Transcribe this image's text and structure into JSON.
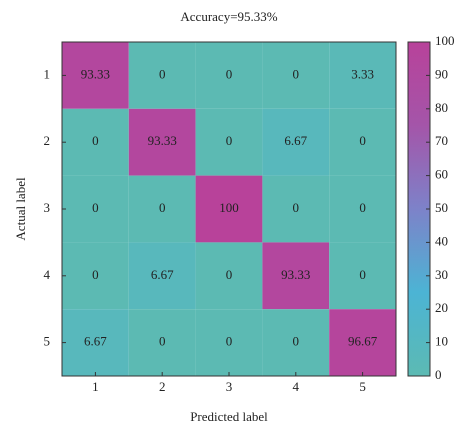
{
  "chart_data": {
    "type": "heatmap",
    "title": "Accuracy=95.33%",
    "x_label": "Predicted label",
    "y_label": "Actual label",
    "x_categories": [
      "1",
      "2",
      "3",
      "4",
      "5"
    ],
    "y_categories": [
      "1",
      "2",
      "3",
      "4",
      "5"
    ],
    "z": [
      [
        93.33,
        0,
        0,
        0,
        3.33
      ],
      [
        0,
        93.33,
        0,
        6.67,
        0
      ],
      [
        0,
        0,
        100,
        0,
        0
      ],
      [
        0,
        6.67,
        0,
        93.33,
        0
      ],
      [
        6.67,
        0,
        0,
        0,
        96.67
      ]
    ],
    "clim": [
      0,
      100
    ],
    "colorbar_ticks": [
      0,
      10,
      20,
      30,
      40,
      50,
      60,
      70,
      80,
      90,
      100
    ],
    "colormap": [
      "#5cbab3",
      "#4cb4d4",
      "#7d82c9",
      "#a455a9",
      "#b8429a"
    ]
  }
}
